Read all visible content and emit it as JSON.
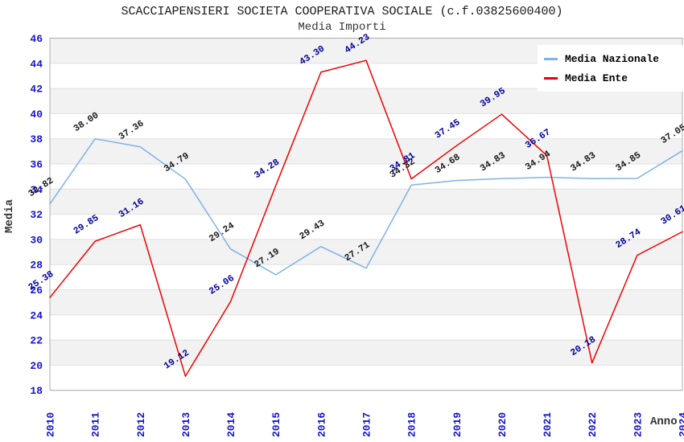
{
  "chart_data": {
    "type": "line",
    "title": "SCACCIAPENSIERI SOCIETA COOPERATIVA SOCIALE (c.f.03825600400)",
    "subtitle": "Media Importi",
    "xlabel": "Anno",
    "ylabel": "Media",
    "x": [
      "2010",
      "2011",
      "2012",
      "2013",
      "2014",
      "2015",
      "2016",
      "2017",
      "2018",
      "2019",
      "2020",
      "2021",
      "2022",
      "2023",
      "2024"
    ],
    "ylim": [
      18,
      46
    ],
    "ytick_step": 2,
    "grid": "horizontal-alternating-bands",
    "legend_position": "top-right",
    "series": [
      {
        "name": "Media Nazionale",
        "color": "#7EB2E8",
        "label_color": "#1A1A1A",
        "values": [
          32.82,
          38.0,
          37.36,
          34.79,
          29.24,
          27.19,
          29.43,
          27.71,
          34.32,
          34.68,
          34.83,
          34.94,
          34.83,
          34.85,
          37.05
        ]
      },
      {
        "name": "Media Ente",
        "color": "#F20000",
        "label_color": "#000099",
        "values": [
          25.38,
          29.85,
          31.16,
          19.12,
          25.06,
          34.28,
          43.3,
          44.23,
          34.81,
          37.45,
          39.95,
          36.67,
          20.18,
          28.74,
          30.61
        ]
      }
    ]
  },
  "style": {
    "tick_label_color": "#1414CC",
    "band_fill": "#F2F2F2",
    "gridline_color": "#E0E0E0",
    "plot_border_color": "#ACACAC"
  }
}
